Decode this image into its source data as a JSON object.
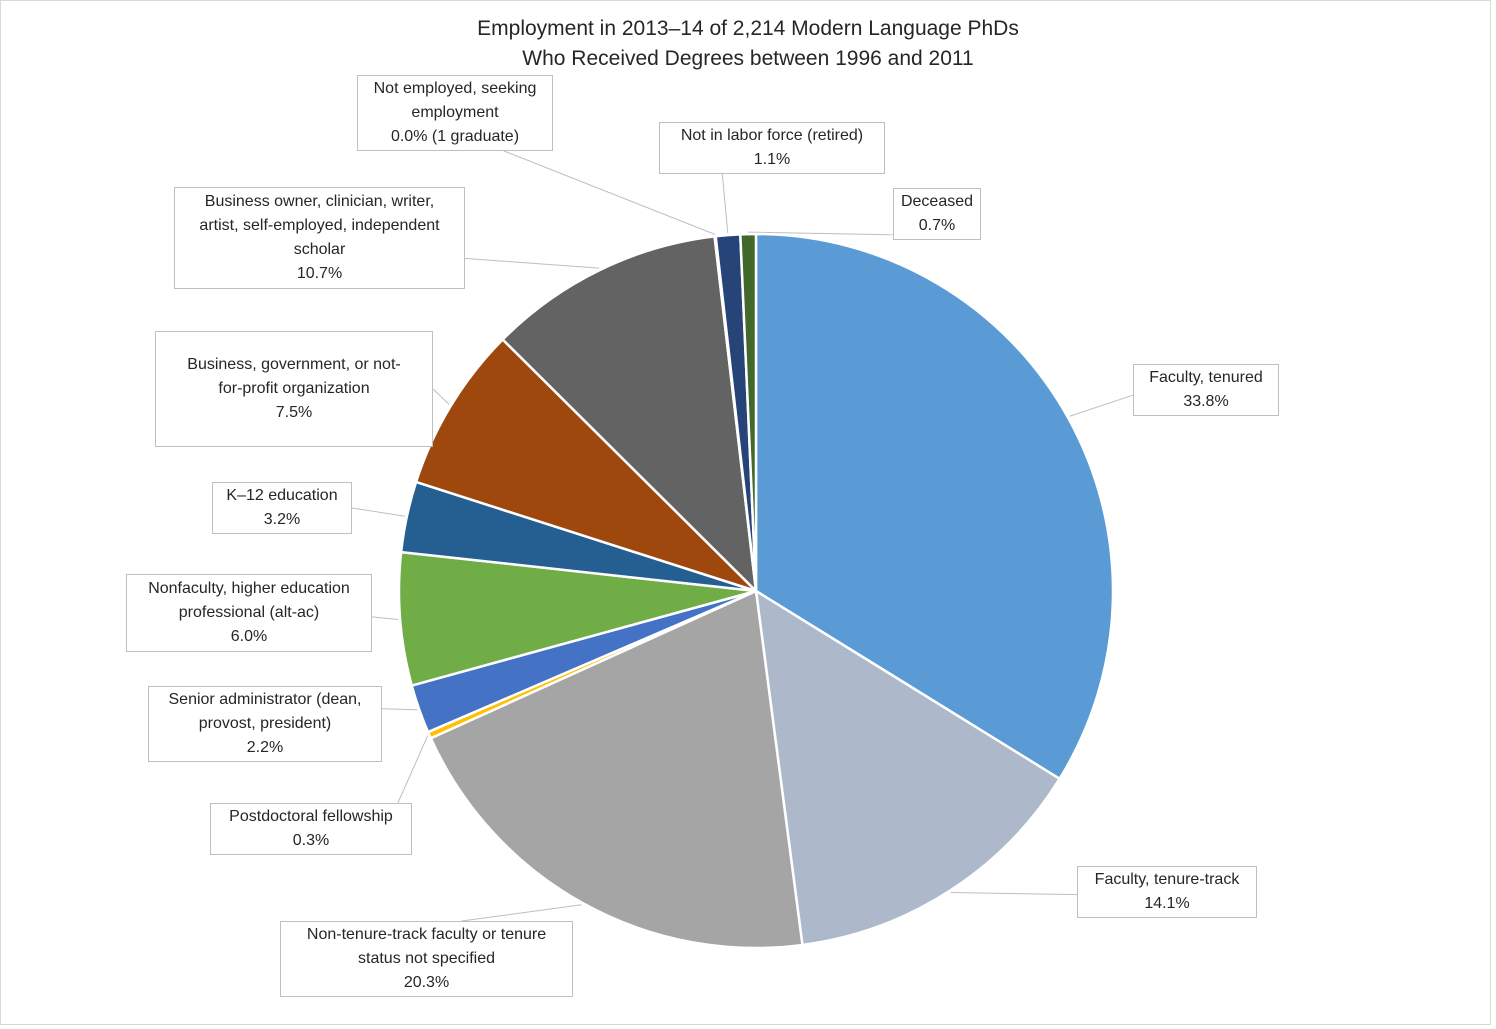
{
  "chart_data": {
    "type": "pie",
    "title": "Employment in 2013–14 of 2,214 Modern Language PhDs",
    "subtitle": "Who Received Degrees between 1996 and 2011",
    "start_angle": "12 o'clock",
    "direction": "clockwise",
    "slices": [
      {
        "label_lines": [
          "Faculty, tenured"
        ],
        "value": 33.8,
        "value_label": "33.8%",
        "color": "#5B9BD5"
      },
      {
        "label_lines": [
          "Faculty, tenure-track"
        ],
        "value": 14.1,
        "value_label": "14.1%",
        "color": "#ADB9CA"
      },
      {
        "label_lines": [
          "Non-tenure-track faculty or tenure",
          "status not specified"
        ],
        "value": 20.3,
        "value_label": "20.3%",
        "color": "#A5A5A5"
      },
      {
        "label_lines": [
          "Postdoctoral fellowship"
        ],
        "value": 0.3,
        "value_label": "0.3%",
        "color": "#FFC000"
      },
      {
        "label_lines": [
          "Senior administrator (dean,",
          "provost, president)"
        ],
        "value": 2.2,
        "value_label": "2.2%",
        "color": "#4472C4"
      },
      {
        "label_lines": [
          "Nonfaculty, higher education",
          "professional (alt-ac)"
        ],
        "value": 6.0,
        "value_label": "6.0%",
        "color": "#70AD47"
      },
      {
        "label_lines": [
          "K–12 education"
        ],
        "value": 3.2,
        "value_label": "3.2%",
        "color": "#255E91"
      },
      {
        "label_lines": [
          "Business, government, or not-",
          "for-profit organization"
        ],
        "value": 7.5,
        "value_label": "7.5%",
        "color": "#9E480E"
      },
      {
        "label_lines": [
          "Business owner, clinician, writer,",
          "artist, self-employed, independent",
          "scholar"
        ],
        "value": 10.7,
        "value_label": "10.7%",
        "color": "#636363"
      },
      {
        "label_lines": [
          "Not employed, seeking",
          "employment"
        ],
        "value": 0.05,
        "value_label": "0.0% (1 graduate)",
        "color": "#997300"
      },
      {
        "label_lines": [
          "Not in labor force (retired)"
        ],
        "value": 1.1,
        "value_label": "1.1%",
        "color": "#264478"
      },
      {
        "label_lines": [
          "Deceased"
        ],
        "value": 0.7,
        "value_label": "0.7%",
        "color": "#43682B"
      }
    ]
  }
}
